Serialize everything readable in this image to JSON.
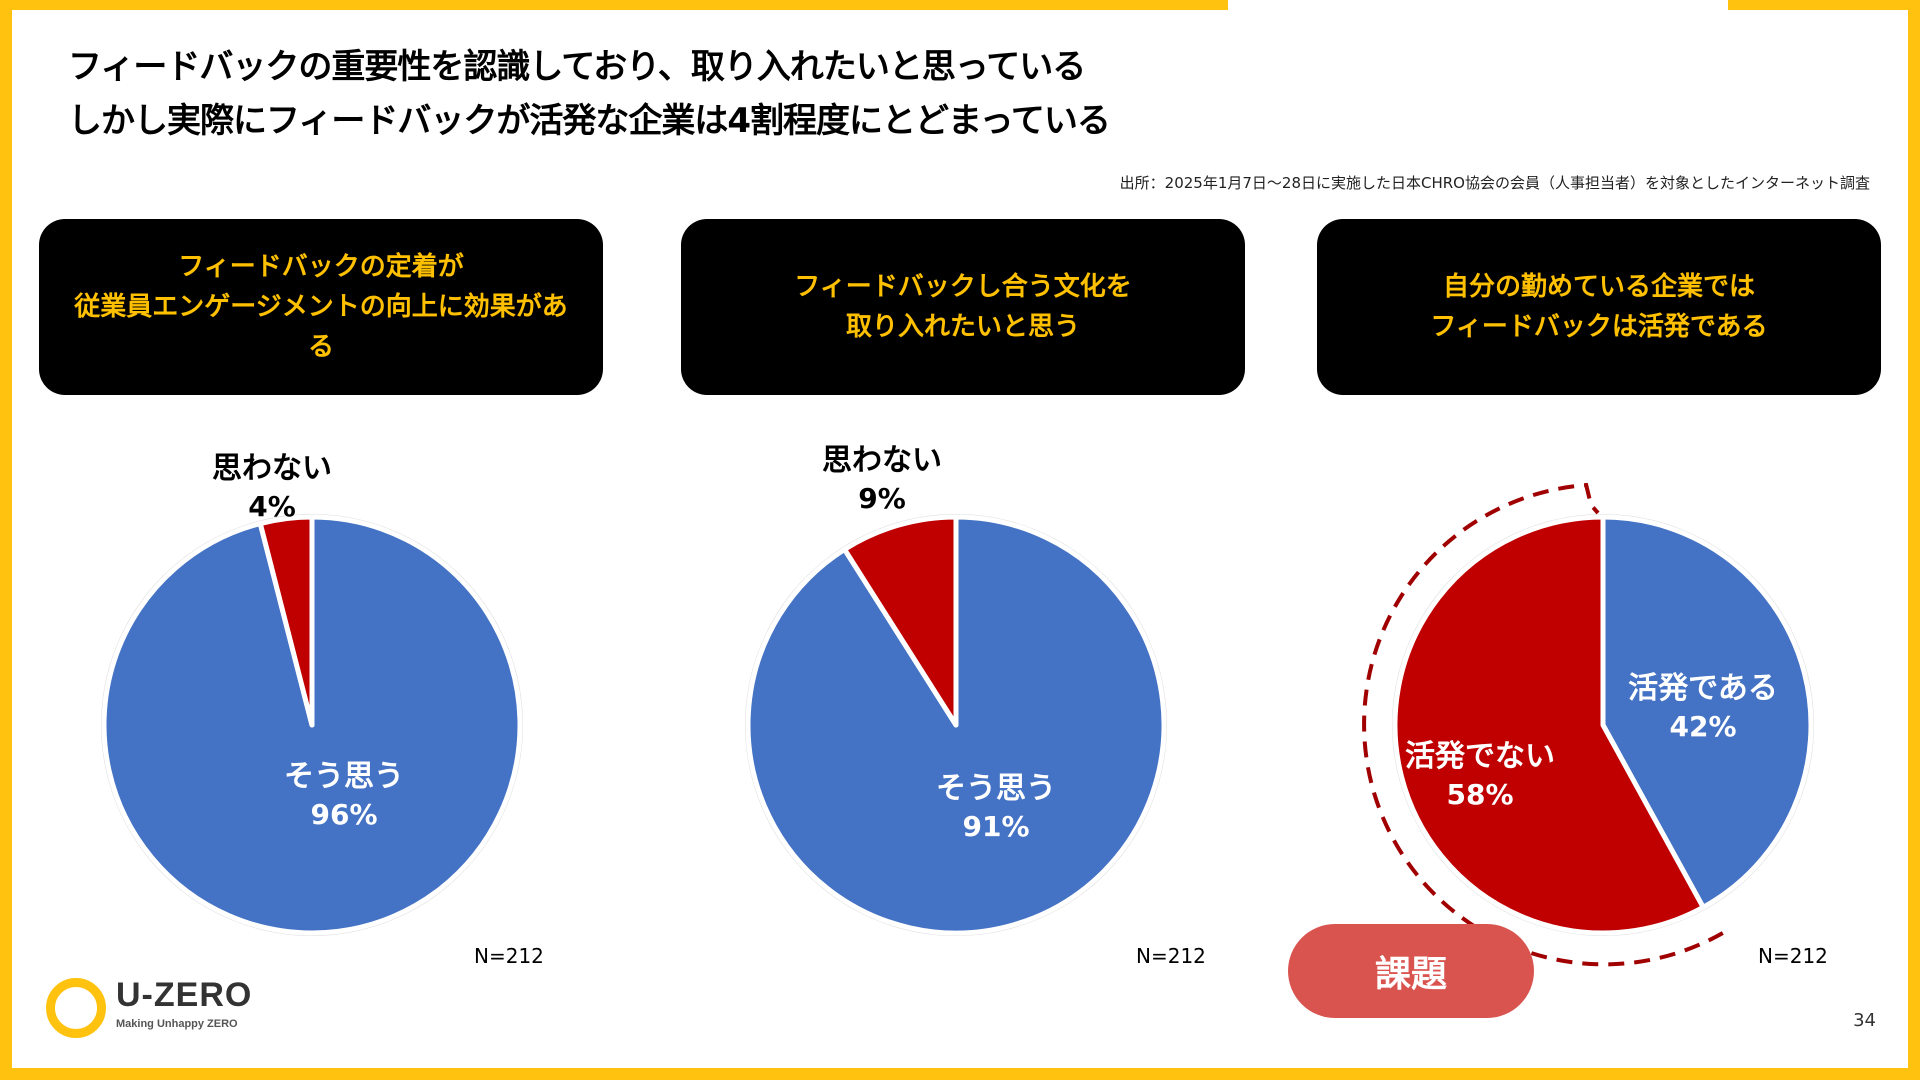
{
  "colors": {
    "frame": "#FFC20E",
    "agree": "#4472C4",
    "disagree": "#C00000",
    "question_text": "#FFC000",
    "issue_badge": "#D9534F",
    "highlight_ring": "#A00000"
  },
  "title": {
    "line1": "フィードバックの重要性を認識しており、取り入れたいと思っている",
    "line2": "しかし実際にフィードバックが活発な企業は4割程度にとどまっている"
  },
  "source": "出所：2025年1月7日〜28日に実施した日本CHRO協会の会員（人事担当者）を対象としたインターネット調査",
  "questions": [
    {
      "lines": [
        "フィードバックの定着が",
        "従業員エンゲージメントの向上に効果があ",
        "る"
      ]
    },
    {
      "lines": [
        "フィードバックし合う文化を",
        "取り入れたいと思う"
      ]
    },
    {
      "lines": [
        "自分の勤めている企業では",
        "フィードバックは活発である"
      ]
    }
  ],
  "chart_data": [
    {
      "type": "pie",
      "slices": [
        {
          "label": "そう思う",
          "value": 96,
          "value_label": "96%"
        },
        {
          "label": "思わない",
          "value": 4,
          "value_label": "4%"
        }
      ],
      "n_label": "N=212"
    },
    {
      "type": "pie",
      "slices": [
        {
          "label": "そう思う",
          "value": 91,
          "value_label": "91%"
        },
        {
          "label": "思わない",
          "value": 9,
          "value_label": "9%"
        }
      ],
      "n_label": "N=212"
    },
    {
      "type": "pie",
      "slices": [
        {
          "label": "活発である",
          "value": 42,
          "value_label": "42%"
        },
        {
          "label": "活発でない",
          "value": 58,
          "value_label": "58%"
        }
      ],
      "n_label": "N=212",
      "highlighted_slice": "活発でない"
    }
  ],
  "issue_badge": "課題",
  "logo": {
    "name": "U-ZERO",
    "tagline": "Making Unhappy ZERO"
  },
  "page_number": "34"
}
